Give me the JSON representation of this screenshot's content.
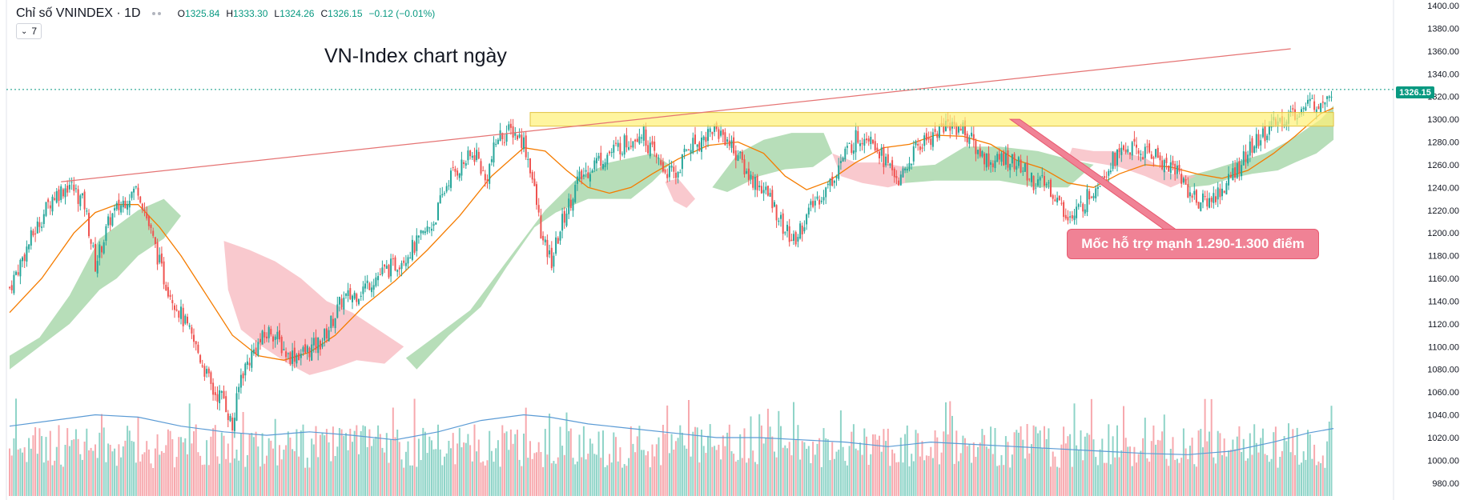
{
  "legend": {
    "symbol": "Chỉ số VNINDEX · 1D",
    "o_label": "O",
    "o_value": "1325.84",
    "h_label": "H",
    "h_value": "1333.30",
    "l_label": "L",
    "l_value": "1324.26",
    "c_label": "C",
    "c_value": "1326.15",
    "change": "−0.12 (−0.01%)"
  },
  "indicators_toggle": {
    "count": "7"
  },
  "title": "VN-Index chart ngày",
  "callout": "Mốc hỗ trợ mạnh 1.290-1.300 điểm",
  "colors": {
    "up": "#26a69a",
    "down": "#ef5350",
    "volume_up": "#8fd4c8",
    "volume_down": "#f7a9ae",
    "cloud_up": "#a5d6a7",
    "cloud_down": "#f8bbc2",
    "ma": "#f57c00",
    "trend": "#e57373",
    "zone": "#fff176",
    "vol_ma": "#5b9bd5",
    "last": "#089981"
  },
  "chart_data": {
    "type": "candlestick",
    "title": "VN-Index chart ngày",
    "ylim": [
      970,
      1400
    ],
    "last_price": "1326.15",
    "y_ticks": [
      "1400.00",
      "1380.00",
      "1360.00",
      "1340.00",
      "1320.00",
      "1300.00",
      "1280.00",
      "1260.00",
      "1240.00",
      "1220.00",
      "1200.00",
      "1180.00",
      "1160.00",
      "1140.00",
      "1120.00",
      "1100.00",
      "1080.00",
      "1060.00",
      "1040.00",
      "1020.00",
      "1000.00",
      "980.00"
    ],
    "close_path": [
      [
        0,
        1152
      ],
      [
        10,
        1195
      ],
      [
        20,
        1232
      ],
      [
        28,
        1243
      ],
      [
        35,
        1225
      ],
      [
        40,
        1172
      ],
      [
        47,
        1213
      ],
      [
        55,
        1232
      ],
      [
        60,
        1240
      ],
      [
        66,
        1200
      ],
      [
        72,
        1160
      ],
      [
        80,
        1128
      ],
      [
        88,
        1095
      ],
      [
        95,
        1060
      ],
      [
        100,
        1055
      ],
      [
        104,
        1028
      ],
      [
        108,
        1075
      ],
      [
        115,
        1100
      ],
      [
        122,
        1115
      ],
      [
        130,
        1092
      ],
      [
        138,
        1095
      ],
      [
        146,
        1105
      ],
      [
        155,
        1140
      ],
      [
        163,
        1148
      ],
      [
        170,
        1160
      ],
      [
        180,
        1172
      ],
      [
        190,
        1190
      ],
      [
        198,
        1210
      ],
      [
        205,
        1248
      ],
      [
        212,
        1262
      ],
      [
        218,
        1270
      ],
      [
        222,
        1245
      ],
      [
        228,
        1285
      ],
      [
        235,
        1290
      ],
      [
        240,
        1280
      ],
      [
        243,
        1258
      ],
      [
        246,
        1225
      ],
      [
        249,
        1190
      ],
      [
        253,
        1175
      ],
      [
        258,
        1210
      ],
      [
        265,
        1245
      ],
      [
        273,
        1262
      ],
      [
        280,
        1270
      ],
      [
        288,
        1280
      ],
      [
        295,
        1290
      ],
      [
        300,
        1270
      ],
      [
        306,
        1255
      ],
      [
        311,
        1250
      ],
      [
        317,
        1278
      ],
      [
        322,
        1280
      ],
      [
        328,
        1292
      ],
      [
        334,
        1285
      ],
      [
        340,
        1268
      ],
      [
        345,
        1250
      ],
      [
        351,
        1240
      ],
      [
        356,
        1228
      ],
      [
        361,
        1205
      ],
      [
        366,
        1192
      ],
      [
        371,
        1210
      ],
      [
        376,
        1228
      ],
      [
        382,
        1240
      ],
      [
        388,
        1263
      ],
      [
        395,
        1283
      ],
      [
        402,
        1288
      ],
      [
        409,
        1262
      ],
      [
        416,
        1245
      ],
      [
        423,
        1275
      ],
      [
        430,
        1285
      ],
      [
        438,
        1296
      ],
      [
        445,
        1292
      ],
      [
        452,
        1272
      ],
      [
        458,
        1262
      ],
      [
        465,
        1266
      ],
      [
        472,
        1258
      ],
      [
        478,
        1245
      ],
      [
        485,
        1242
      ],
      [
        491,
        1222
      ],
      [
        496,
        1212
      ],
      [
        502,
        1228
      ],
      [
        508,
        1245
      ],
      [
        515,
        1265
      ],
      [
        522,
        1275
      ],
      [
        528,
        1270
      ],
      [
        534,
        1270
      ],
      [
        540,
        1260
      ],
      [
        545,
        1255
      ],
      [
        551,
        1235
      ],
      [
        556,
        1226
      ],
      [
        561,
        1230
      ],
      [
        567,
        1240
      ],
      [
        574,
        1260
      ],
      [
        580,
        1275
      ],
      [
        587,
        1290
      ],
      [
        594,
        1300
      ],
      [
        600,
        1305
      ],
      [
        606,
        1311
      ],
      [
        612,
        1318
      ],
      [
        617,
        1326
      ]
    ],
    "ma20_path": [
      [
        0,
        1130
      ],
      [
        15,
        1160
      ],
      [
        30,
        1200
      ],
      [
        40,
        1218
      ],
      [
        50,
        1225
      ],
      [
        60,
        1225
      ],
      [
        70,
        1205
      ],
      [
        80,
        1180
      ],
      [
        92,
        1145
      ],
      [
        104,
        1110
      ],
      [
        116,
        1092
      ],
      [
        128,
        1088
      ],
      [
        140,
        1095
      ],
      [
        152,
        1110
      ],
      [
        165,
        1135
      ],
      [
        180,
        1158
      ],
      [
        195,
        1185
      ],
      [
        210,
        1215
      ],
      [
        225,
        1250
      ],
      [
        240,
        1275
      ],
      [
        250,
        1272
      ],
      [
        260,
        1255
      ],
      [
        270,
        1240
      ],
      [
        280,
        1235
      ],
      [
        290,
        1240
      ],
      [
        300,
        1252
      ],
      [
        312,
        1265
      ],
      [
        326,
        1277
      ],
      [
        340,
        1280
      ],
      [
        352,
        1270
      ],
      [
        362,
        1250
      ],
      [
        372,
        1238
      ],
      [
        382,
        1245
      ],
      [
        395,
        1262
      ],
      [
        408,
        1275
      ],
      [
        420,
        1278
      ],
      [
        432,
        1286
      ],
      [
        445,
        1285
      ],
      [
        458,
        1278
      ],
      [
        470,
        1264
      ],
      [
        482,
        1257
      ],
      [
        494,
        1244
      ],
      [
        506,
        1240
      ],
      [
        518,
        1252
      ],
      [
        530,
        1260
      ],
      [
        542,
        1258
      ],
      [
        554,
        1252
      ],
      [
        566,
        1248
      ],
      [
        578,
        1255
      ],
      [
        590,
        1270
      ],
      [
        600,
        1285
      ],
      [
        612,
        1305
      ],
      [
        618,
        1310
      ]
    ],
    "cloud_green": [
      [
        [
          0,
          1092
        ],
        [
          14,
          1108
        ],
        [
          28,
          1145
        ],
        [
          42,
          1195
        ],
        [
          60,
          1220
        ],
        [
          72,
          1230
        ],
        [
          80,
          1215
        ],
        [
          72,
          1195
        ],
        [
          60,
          1180
        ],
        [
          50,
          1160
        ],
        [
          42,
          1150
        ],
        [
          28,
          1120
        ],
        [
          14,
          1100
        ],
        [
          0,
          1080
        ]
      ],
      [
        [
          185,
          1090
        ],
        [
          198,
          1108
        ],
        [
          215,
          1132
        ],
        [
          232,
          1175
        ],
        [
          250,
          1220
        ],
        [
          265,
          1248
        ],
        [
          280,
          1262
        ],
        [
          300,
          1270
        ],
        [
          308,
          1260
        ],
        [
          300,
          1245
        ],
        [
          290,
          1230
        ],
        [
          270,
          1230
        ],
        [
          255,
          1218
        ],
        [
          245,
          1205
        ],
        [
          232,
          1170
        ],
        [
          220,
          1135
        ],
        [
          205,
          1110
        ],
        [
          190,
          1080
        ]
      ],
      [
        [
          328,
          1240
        ],
        [
          340,
          1270
        ],
        [
          352,
          1282
        ],
        [
          365,
          1288
        ],
        [
          380,
          1288
        ],
        [
          384,
          1270
        ],
        [
          375,
          1258
        ],
        [
          362,
          1256
        ],
        [
          350,
          1250
        ],
        [
          335,
          1236
        ]
      ],
      [
        [
          418,
          1258
        ],
        [
          432,
          1260
        ],
        [
          446,
          1276
        ],
        [
          462,
          1276
        ],
        [
          480,
          1272
        ],
        [
          494,
          1265
        ],
        [
          506,
          1260
        ],
        [
          494,
          1240
        ],
        [
          480,
          1240
        ],
        [
          462,
          1246
        ],
        [
          448,
          1246
        ],
        [
          432,
          1246
        ],
        [
          418,
          1244
        ]
      ],
      [
        [
          550,
          1250
        ],
        [
          560,
          1255
        ],
        [
          572,
          1262
        ],
        [
          586,
          1270
        ],
        [
          598,
          1282
        ],
        [
          612,
          1300
        ],
        [
          618,
          1312
        ],
        [
          618,
          1282
        ],
        [
          610,
          1270
        ],
        [
          600,
          1262
        ],
        [
          592,
          1255
        ],
        [
          580,
          1252
        ],
        [
          570,
          1248
        ],
        [
          560,
          1242
        ],
        [
          550,
          1240
        ]
      ]
    ],
    "cloud_red": [
      [
        [
          100,
          1193
        ],
        [
          112,
          1185
        ],
        [
          124,
          1175
        ],
        [
          136,
          1160
        ],
        [
          148,
          1140
        ],
        [
          160,
          1130
        ],
        [
          172,
          1115
        ],
        [
          184,
          1100
        ],
        [
          175,
          1085
        ],
        [
          162,
          1088
        ],
        [
          150,
          1080
        ],
        [
          140,
          1075
        ],
        [
          130,
          1085
        ],
        [
          118,
          1100
        ],
        [
          108,
          1115
        ],
        [
          102,
          1150
        ]
      ],
      [
        [
          306,
          1245
        ],
        [
          312,
          1248
        ],
        [
          320,
          1230
        ],
        [
          316,
          1222
        ],
        [
          310,
          1228
        ]
      ],
      [
        [
          384,
          1270
        ],
        [
          395,
          1262
        ],
        [
          406,
          1262
        ],
        [
          418,
          1258
        ],
        [
          418,
          1244
        ],
        [
          410,
          1240
        ],
        [
          398,
          1244
        ],
        [
          388,
          1250
        ]
      ],
      [
        [
          494,
          1265
        ],
        [
          506,
          1262
        ],
        [
          518,
          1258
        ],
        [
          530,
          1250
        ],
        [
          542,
          1240
        ],
        [
          554,
          1250
        ],
        [
          542,
          1252
        ],
        [
          530,
          1266
        ],
        [
          518,
          1272
        ],
        [
          506,
          1272
        ],
        [
          496,
          1275
        ]
      ]
    ],
    "resistance_trendline": [
      [
        24,
        1245
      ],
      [
        598,
        1362
      ]
    ],
    "support_zone": {
      "x_from": 243,
      "x_to": 618,
      "y_low": 1294,
      "y_high": 1306,
      "label": "Mốc hỗ trợ mạnh 1.290-1.300 điểm"
    },
    "volume_ma_path": [
      [
        0,
        1030
      ],
      [
        20,
        1035
      ],
      [
        40,
        1040
      ],
      [
        60,
        1038
      ],
      [
        80,
        1030
      ],
      [
        100,
        1025
      ],
      [
        120,
        1022
      ],
      [
        140,
        1025
      ],
      [
        160,
        1022
      ],
      [
        180,
        1018
      ],
      [
        200,
        1025
      ],
      [
        220,
        1035
      ],
      [
        240,
        1040
      ],
      [
        252,
        1038
      ],
      [
        270,
        1032
      ],
      [
        290,
        1028
      ],
      [
        310,
        1024
      ],
      [
        330,
        1020
      ],
      [
        350,
        1020
      ],
      [
        370,
        1018
      ],
      [
        390,
        1016
      ],
      [
        410,
        1012
      ],
      [
        430,
        1016
      ],
      [
        450,
        1014
      ],
      [
        470,
        1012
      ],
      [
        490,
        1010
      ],
      [
        510,
        1008
      ],
      [
        530,
        1006
      ],
      [
        550,
        1005
      ],
      [
        570,
        1008
      ],
      [
        590,
        1016
      ],
      [
        606,
        1024
      ],
      [
        618,
        1028
      ]
    ]
  }
}
